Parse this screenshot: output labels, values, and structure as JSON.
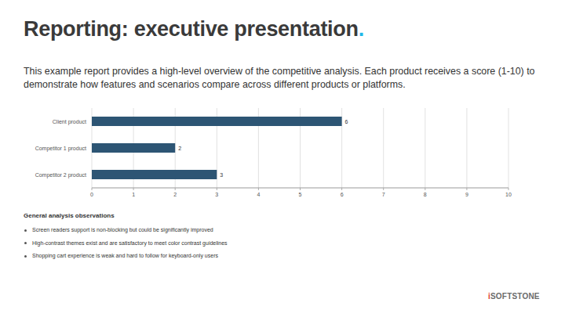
{
  "page": {
    "title": "Reporting: executive presentation.",
    "intro": "This example report provides a high-level overview of the competitive analysis. Each product receives a score (1-10) to demonstrate how features and scenarios compare across different products or platforms.",
    "observations": {
      "heading": "General analysis observations",
      "items": [
        "Screen readers support is non-blocking but could be significantly improved",
        "High-contrast themes exist and are satisfactory to meet color contrast guidelines",
        "Shopping cart experience is weak and hard to follow for keyboard-only users"
      ]
    },
    "logo": "iSOFTSTONE"
  },
  "chart_data": {
    "type": "bar",
    "orientation": "horizontal",
    "categories": [
      "Client product",
      "Competitor 1 product",
      "Competitor 2 product"
    ],
    "values": [
      6,
      2,
      3
    ],
    "color": "#2d5574",
    "xlim": [
      0,
      10
    ],
    "xticks": [
      0,
      1,
      2,
      3,
      4,
      5,
      6,
      7,
      8,
      9,
      10
    ],
    "grid": true,
    "data_labels": true
  }
}
